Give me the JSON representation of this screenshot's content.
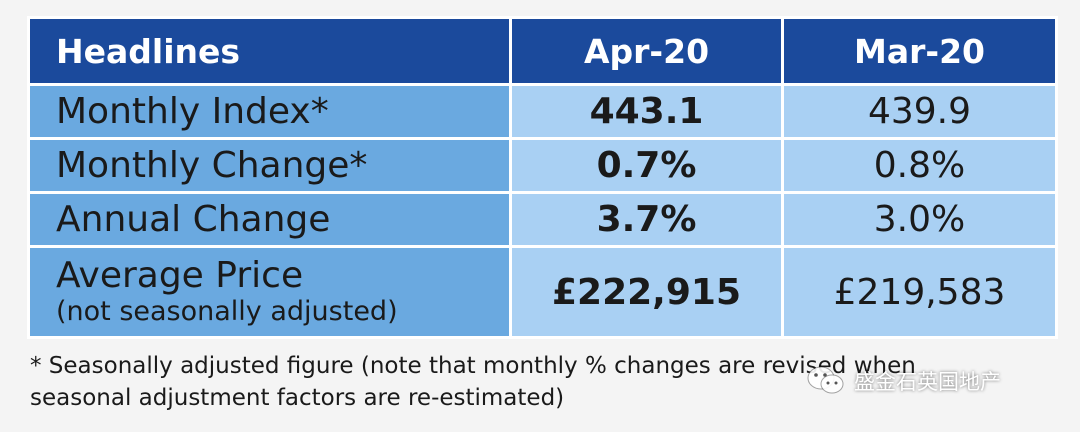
{
  "table": {
    "header": {
      "label": "Headlines",
      "col1": "Apr-20",
      "col2": "Mar-20"
    },
    "rows": [
      {
        "label": "Monthly Index*",
        "apr": "443.1",
        "mar": "439.9"
      },
      {
        "label": "Monthly Change*",
        "apr": "0.7%",
        "mar": "0.8%"
      },
      {
        "label": "Annual Change",
        "apr": "3.7%",
        "mar": "3.0%"
      },
      {
        "label": "Average Price",
        "sublabel": "(not seasonally adjusted)",
        "apr": "£222,915",
        "mar": "£219,583"
      }
    ]
  },
  "footnote": {
    "line1": "* Seasonally adjusted figure (note that monthly % changes are revised when",
    "line2": "seasonal adjustment factors are re-estimated)"
  },
  "watermark": {
    "icon": "wechat-icon",
    "text": "盛金石英国地产"
  },
  "colors": {
    "header_bg": "#1b4a9c",
    "label_bg": "#6aa9e0",
    "value_bg": "#a9d0f3",
    "border": "#ffffff"
  }
}
